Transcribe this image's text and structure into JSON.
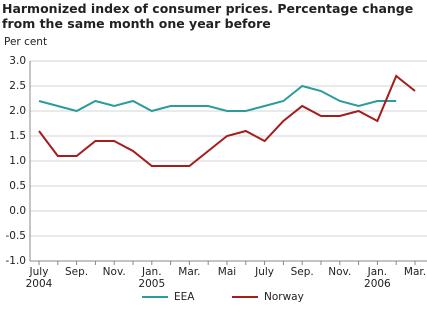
{
  "chart_data": {
    "type": "line",
    "title": "Harmonized index of consumer prices. Percentage change from the same month one year before",
    "y_label": "Per cent",
    "categories": [
      "July\n2004",
      null,
      "Sep.",
      null,
      "Nov.",
      null,
      "Jan.\n2005",
      null,
      "Mar.",
      null,
      "Mai",
      null,
      "July",
      null,
      "Sep.",
      null,
      "Nov.",
      null,
      "Jan.\n2006",
      null,
      "Mar."
    ],
    "series": [
      {
        "name": "EEA",
        "color": "#2b9c9a",
        "values": [
          2.2,
          2.1,
          2.0,
          2.2,
          2.1,
          2.2,
          2.0,
          2.1,
          2.1,
          2.1,
          2.0,
          2.0,
          2.1,
          2.2,
          2.5,
          2.4,
          2.2,
          2.1,
          2.2,
          2.2,
          null
        ]
      },
      {
        "name": "Norway",
        "color": "#a51c1c",
        "values": [
          1.6,
          1.1,
          1.1,
          1.4,
          1.4,
          1.2,
          0.9,
          0.9,
          0.9,
          1.2,
          1.5,
          1.6,
          1.4,
          1.8,
          2.1,
          1.9,
          1.9,
          2.0,
          1.8,
          2.7,
          2.4
        ]
      }
    ],
    "ylim": [
      -1.0,
      3.0
    ],
    "yticks": [
      {
        "value": -1.0,
        "label": "-1.0"
      },
      {
        "value": -0.5,
        "label": "-0.5"
      },
      {
        "value": 0.0,
        "label": "0.0"
      },
      {
        "value": 0.5,
        "label": "0.5"
      },
      {
        "value": 1.0,
        "label": "1.0"
      },
      {
        "value": 1.5,
        "label": "1.5"
      },
      {
        "value": 2.0,
        "label": "2.0"
      },
      {
        "value": 2.5,
        "label": "2.5"
      },
      {
        "value": 3.0,
        "label": "3.0"
      }
    ],
    "grid": true
  }
}
